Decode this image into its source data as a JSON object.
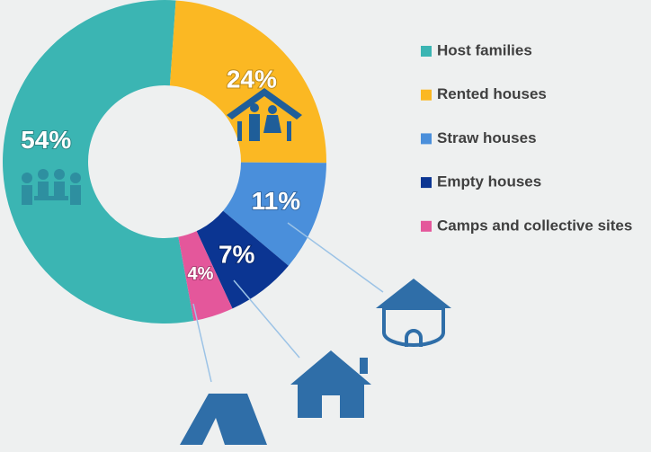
{
  "chart_data": {
    "type": "donut",
    "categories": [
      "Host families",
      "Rented houses",
      "Straw houses",
      "Empty houses",
      "Camps and collective sites"
    ],
    "values": [
      54,
      24,
      11,
      7,
      4
    ],
    "value_labels": [
      "54%",
      "24%",
      "11%",
      "7%",
      "4%"
    ],
    "colors": [
      "#3bb5b3",
      "#fbb823",
      "#4a8fdb",
      "#0b3592",
      "#e4579b"
    ],
    "legend": "right"
  }
}
